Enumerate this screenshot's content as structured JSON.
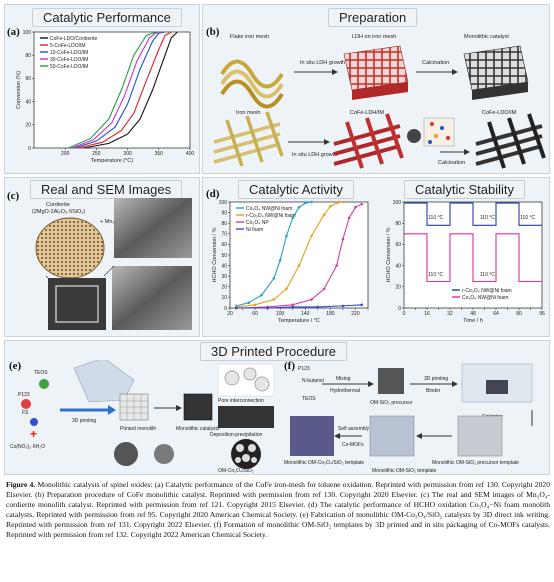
{
  "panels": {
    "a": {
      "label": "(a)",
      "title": "Catalytic Performance"
    },
    "b": {
      "label": "(b)",
      "title": "Preparation"
    },
    "c": {
      "label": "(c)",
      "title": "Real and SEM Images"
    },
    "d": {
      "label": "(d)",
      "title_left": "Catalytic Activity",
      "title_right": "Catalytic Stability"
    },
    "e": {
      "label": "(e)",
      "title": "3D Printed Procedure"
    },
    "f": {
      "label": "(f)"
    }
  },
  "panel_b_text": {
    "top": [
      "Flake iron mesh",
      "LDH on iron mesh",
      "Monolithic catalyst",
      "In situ LDH growth",
      "Calcination"
    ],
    "bottom": [
      "Iron mesh",
      "CoFe-LDH/IM",
      "CoFe-LDO/IM",
      "In situ LDH growth",
      "Calcination"
    ]
  },
  "panel_c_text": {
    "line1": "Cordierite",
    "line2": "(2MgO·2Al₂O₃·5SiO₂)",
    "line3": "+ Mn₃O₄"
  },
  "panel_e_text": [
    "TEOS",
    "P123",
    "FS",
    "Co(NO₃)₂·6H₂O",
    "3D printing",
    "Printed monolith",
    "Monolithic catalysts",
    "Pore interconnection",
    "Deposition-precipitation",
    "OM-Co₃O₄/SiO₂"
  ],
  "panel_f_text": [
    "P123",
    "N-butanol",
    "TEOS",
    "Mixing",
    "Hydrothermal",
    "OM-SiO₂ precursor",
    "3D printing",
    "Binder",
    "Calcining",
    "Self assembly",
    "Co-MOFs",
    "Monolithic OM-Co₃O₄/SiO₂ template",
    "Monolithic OM-SiO₂ template",
    "Monolithic OM-SiO₂ precursor template"
  ],
  "caption": {
    "label": "Figure 4.",
    "text": "Monolithic catalysts of spinel oxides: (a) Catalytic performance of the CoFe iron-mesh for toluene oxidation. Reprinted with permission from ref 130. Copyright 2020 Elsevier. (b) Preparation procedure of CoFe monolithic catalyst. Reprinted with permission from ref 130. Copyright 2020 Elsevier. (c) The real and SEM images of Mn₃O₄-cordierite monolith catalyst. Reprinted with permission from ref 121. Copyright 2015 Elsevier. (d) The catalytic performance of HCHO oxidation Co₃O₄−Ni foam monolith catalysts. Reprinted with permission from ref 95. Copyright 2020 American Chemical Society. (e) Fabrication of monolithic OM-Co₃O₄/SiO₂ catalysts by 3D direct ink writing. Reprinted with permission from ref 131. Copyright 2022 Elsevier. (f) Formation of monolithic OM-SiO₂ templates by 3D printed and in situ packaging of Co-MOFs catalysts. Reprinted with permission from ref 132. Copyright 2022 American Chemical Society."
  },
  "chart_data": [
    {
      "type": "line",
      "xlabel": "Temperature (°C)",
      "ylabel": "Conversion (%)",
      "xlim": [
        150,
        400
      ],
      "ylim": [
        0,
        100
      ],
      "xticks": [
        200,
        250,
        300,
        350,
        400
      ],
      "yticks": [
        0,
        20,
        40,
        60,
        80,
        100
      ],
      "legend": "top-left",
      "series": [
        {
          "name": "CoFe-LDO/Cordierite",
          "color": "#111111",
          "x": [
            230,
            270,
            300,
            320,
            340,
            360,
            370,
            380
          ],
          "y": [
            0,
            4,
            12,
            25,
            50,
            80,
            95,
            100
          ]
        },
        {
          "name": "5-CoFe-LDO/IM",
          "color": "#e02020",
          "x": [
            220,
            260,
            290,
            310,
            330,
            350,
            360,
            370
          ],
          "y": [
            0,
            5,
            15,
            30,
            58,
            85,
            97,
            100
          ]
        },
        {
          "name": "10-CoFe-LDO/IM",
          "color": "#2050d0",
          "x": [
            215,
            250,
            280,
            300,
            320,
            340,
            350,
            360
          ],
          "y": [
            0,
            6,
            18,
            38,
            68,
            92,
            99,
            100
          ]
        },
        {
          "name": "30-CoFe-LDO/IM",
          "color": "#d030c0",
          "x": [
            210,
            245,
            275,
            295,
            315,
            335,
            345,
            355
          ],
          "y": [
            0,
            7,
            22,
            45,
            75,
            95,
            99,
            100
          ]
        },
        {
          "name": "50-CoFe-LDO/IM",
          "color": "#20a040",
          "x": [
            205,
            240,
            270,
            290,
            310,
            330,
            340,
            350
          ],
          "y": [
            0,
            8,
            25,
            50,
            80,
            97,
            99,
            100
          ]
        }
      ]
    },
    {
      "type": "line",
      "xlabel": "Temperature / °C",
      "ylabel": "HCHO Conversion / %",
      "xlim": [
        20,
        240
      ],
      "ylim": [
        0,
        100
      ],
      "xticks": [
        20,
        40,
        60,
        80,
        100,
        120,
        140,
        160,
        180,
        200,
        220,
        240
      ],
      "yticks": [
        0,
        10,
        20,
        30,
        40,
        50,
        60,
        70,
        80,
        90,
        100
      ],
      "legend": "top-left",
      "series": [
        {
          "name": "Co₃O₄ NW@Ni foam",
          "color": "#2aa0c8",
          "x": [
            30,
            50,
            70,
            90,
            100,
            110,
            120,
            130,
            140,
            150
          ],
          "y": [
            2,
            5,
            12,
            28,
            45,
            68,
            85,
            95,
            99,
            100
          ]
        },
        {
          "name": "r-Co₃O₄ NW@Ni foam",
          "color": "#e8a020",
          "x": [
            30,
            60,
            90,
            110,
            130,
            150,
            170,
            180,
            190,
            200
          ],
          "y": [
            1,
            3,
            8,
            18,
            40,
            68,
            88,
            96,
            99,
            100
          ]
        },
        {
          "name": "Co₃O₄ NP",
          "color": "#d040a0",
          "x": [
            30,
            80,
            120,
            150,
            170,
            190,
            200,
            210,
            220,
            230
          ],
          "y": [
            0,
            1,
            3,
            8,
            18,
            40,
            65,
            85,
            95,
            98
          ]
        },
        {
          "name": "Ni foam",
          "color": "#3050c8",
          "x": [
            30,
            80,
            120,
            160,
            200,
            230
          ],
          "y": [
            0,
            0,
            1,
            1,
            2,
            3
          ]
        }
      ]
    },
    {
      "type": "line",
      "xlabel": "Time / h",
      "ylabel": "HCHO Conversion / %",
      "xlim": [
        0,
        96
      ],
      "ylim": [
        0,
        100
      ],
      "xticks": [
        0,
        8,
        16,
        24,
        32,
        40,
        48,
        56,
        64,
        72,
        80,
        88,
        96
      ],
      "yticks": [
        0,
        20,
        40,
        60,
        80,
        100
      ],
      "legend": "bottom-right",
      "annotations": [
        "150 °C",
        "110 °C",
        "150 °C",
        "110 °C",
        "150 °C",
        "110 °C",
        "110 °C",
        "110 °C"
      ],
      "series": [
        {
          "name": "r-Co₃O₄ NW@Ni foam",
          "color": "#2040a0",
          "x": [
            0,
            16,
            16,
            32,
            32,
            48,
            48,
            64,
            64,
            80,
            80,
            96
          ],
          "y": [
            99,
            99,
            78,
            78,
            99,
            99,
            78,
            78,
            99,
            99,
            78,
            78
          ]
        },
        {
          "name": "Co₃O₄ NW@Ni foam",
          "color": "#e03090",
          "x": [
            0,
            16,
            16,
            32,
            32,
            48,
            48,
            64,
            64,
            80,
            80,
            96
          ],
          "y": [
            70,
            70,
            25,
            25,
            70,
            70,
            25,
            25,
            70,
            70,
            25,
            25
          ]
        }
      ]
    }
  ]
}
